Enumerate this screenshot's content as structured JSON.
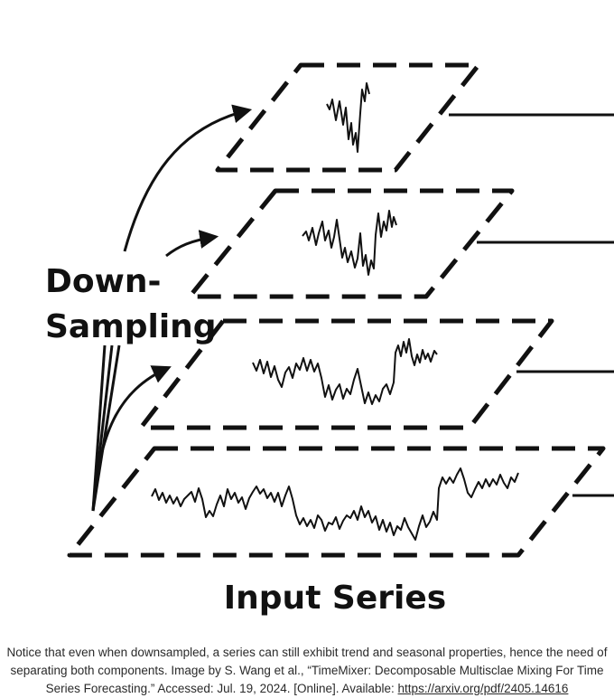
{
  "diagram": {
    "label_downsampling_line1": "Down-",
    "label_downsampling_line2": "Sampling",
    "label_input": "Input Series",
    "colors": {
      "stroke": "#111111",
      "background": "#ffffff"
    }
  },
  "caption": {
    "text": "Notice that even when downsampled, a series can still exhibit trend and seasonal properties, hence the need of separating both components. Image by S. Wang et al., “TimeMixer: Decomposable Multisclae Mixing For Time Series Forecasting.” Accessed: Jul. 19, 2024. [Online]. Available: ",
    "link_text": "https://arxiv.org/pdf/2405.14616"
  }
}
